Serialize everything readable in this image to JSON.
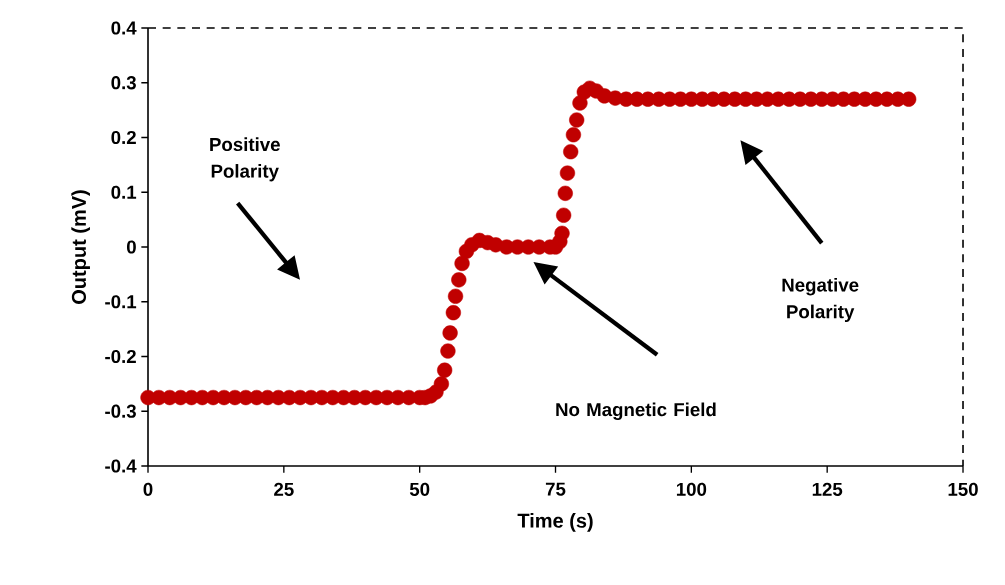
{
  "chart_data": {
    "type": "scatter",
    "xlabel": "Time (s)",
    "ylabel": "Output (mV)",
    "xlim": [
      0,
      150
    ],
    "ylim": [
      -0.4,
      0.4
    ],
    "xticks": [
      0,
      25,
      50,
      75,
      100,
      125,
      150
    ],
    "yticks": [
      -0.4,
      -0.3,
      -0.2,
      -0.1,
      0,
      0.1,
      0.2,
      0.3,
      0.4
    ],
    "series": [
      {
        "color": "#c00000",
        "x": [
          0,
          2,
          4,
          6,
          8,
          10,
          12,
          14,
          16,
          18,
          20,
          22,
          24,
          26,
          28,
          30,
          32,
          34,
          36,
          38,
          40,
          42,
          44,
          46,
          48,
          50,
          51,
          52,
          53,
          54,
          54.6,
          55.2,
          55.6,
          56.2,
          56.6,
          57.2,
          57.8,
          58.6,
          59.6,
          61,
          62.5,
          64,
          66,
          68,
          70,
          72,
          74,
          75,
          75.8,
          76.2,
          76.5,
          76.8,
          77.2,
          77.8,
          78.3,
          78.9,
          79.5,
          80.3,
          81.3,
          82.5,
          84,
          86,
          88,
          90,
          92,
          94,
          96,
          98,
          100,
          102,
          104,
          106,
          108,
          110,
          112,
          114,
          116,
          118,
          120,
          122,
          124,
          126,
          128,
          130,
          132,
          134,
          136,
          138,
          140
        ],
        "values": [
          -0.275,
          -0.275,
          -0.275,
          -0.275,
          -0.275,
          -0.275,
          -0.275,
          -0.275,
          -0.275,
          -0.275,
          -0.275,
          -0.275,
          -0.275,
          -0.275,
          -0.275,
          -0.275,
          -0.275,
          -0.275,
          -0.275,
          -0.275,
          -0.275,
          -0.275,
          -0.275,
          -0.275,
          -0.275,
          -0.275,
          -0.275,
          -0.272,
          -0.265,
          -0.25,
          -0.225,
          -0.19,
          -0.157,
          -0.12,
          -0.09,
          -0.06,
          -0.03,
          -0.008,
          0.004,
          0.012,
          0.008,
          0.004,
          0,
          0,
          0,
          0,
          0,
          0,
          0.01,
          0.025,
          0.058,
          0.098,
          0.135,
          0.174,
          0.205,
          0.232,
          0.263,
          0.283,
          0.29,
          0.285,
          0.276,
          0.272,
          0.27,
          0.27,
          0.27,
          0.27,
          0.27,
          0.27,
          0.27,
          0.27,
          0.27,
          0.27,
          0.27,
          0.27,
          0.27,
          0.27,
          0.27,
          0.27,
          0.27,
          0.27,
          0.27,
          0.27,
          0.27,
          0.27,
          0.27,
          0.27,
          0.27,
          0.27,
          0.27
        ]
      }
    ],
    "annotations": [
      "Positive Polarity",
      "No Magnetic Field",
      "Negative Polarity"
    ]
  }
}
